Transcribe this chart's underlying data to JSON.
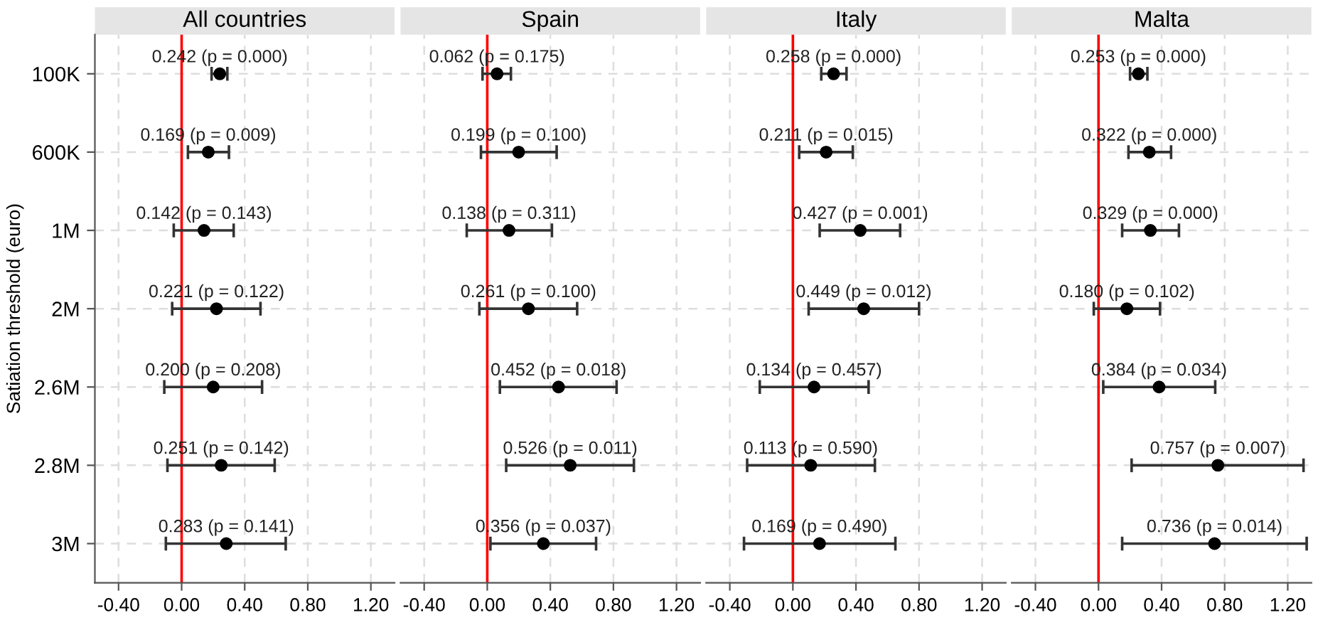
{
  "chart_data": [
    {
      "type": "scatter",
      "orientation": "horizontal",
      "title": "All countries",
      "ylabel": "Satiation threshold (euro)",
      "categories": [
        "100K",
        "600K",
        "1M",
        "2M",
        "2.6M",
        "2.8M",
        "3M"
      ],
      "series": [
        {
          "color": "#000000",
          "values": [
            0.242,
            0.169,
            0.142,
            0.221,
            0.2,
            0.251,
            0.283
          ],
          "errors": [
            [
              0.19,
              0.29
            ],
            [
              0.04,
              0.3
            ],
            [
              -0.05,
              0.33
            ],
            [
              -0.06,
              0.5
            ],
            [
              -0.11,
              0.51
            ],
            [
              -0.09,
              0.59
            ],
            [
              -0.1,
              0.66
            ]
          ],
          "value_labels": [
            "0.242 (p = 0.000)",
            "0.169 (p = 0.009)",
            "0.142 (p = 0.143)",
            "0.221 (p = 0.122)",
            "0.200 (p = 0.208)",
            "0.251 (p = 0.142)",
            "0.283 (p = 0.141)"
          ]
        }
      ],
      "xlim": [
        -0.55,
        1.35
      ],
      "xticks": [
        {
          "value": -0.4,
          "label": "-0.40"
        },
        {
          "value": 0,
          "label": "0.00"
        },
        {
          "value": 0.4,
          "label": "0.40"
        },
        {
          "value": 0.8,
          "label": "0.80"
        },
        {
          "value": 1.2,
          "label": "1.20"
        }
      ],
      "ref_lines": [
        {
          "axis": "x",
          "value": 0,
          "color": "#ff0000"
        }
      ],
      "grid": true,
      "marker": "circle"
    },
    {
      "type": "scatter",
      "orientation": "horizontal",
      "title": "Spain",
      "categories": [
        null,
        null,
        null,
        null,
        null,
        null,
        null
      ],
      "series": [
        {
          "color": "#000000",
          "values": [
            0.062,
            0.199,
            0.138,
            0.261,
            0.452,
            0.526,
            0.356
          ],
          "errors": [
            [
              -0.03,
              0.15
            ],
            [
              -0.04,
              0.44
            ],
            [
              -0.13,
              0.41
            ],
            [
              -0.05,
              0.57
            ],
            [
              0.08,
              0.82
            ],
            [
              0.12,
              0.93
            ],
            [
              0.02,
              0.69
            ]
          ],
          "value_labels": [
            "0.062 (p = 0.175)",
            "0.199 (p = 0.100)",
            "0.138 (p = 0.311)",
            "0.261 (p = 0.100)",
            "0.452 (p = 0.018)",
            "0.526 (p = 0.011)",
            "0.356 (p = 0.037)"
          ]
        }
      ],
      "xlim": [
        -0.55,
        1.35
      ],
      "xticks": [
        {
          "value": -0.4,
          "label": "-0.40"
        },
        {
          "value": 0,
          "label": "0.00"
        },
        {
          "value": 0.4,
          "label": "0.40"
        },
        {
          "value": 0.8,
          "label": "0.80"
        },
        {
          "value": 1.2,
          "label": "1.20"
        }
      ],
      "ref_lines": [
        {
          "axis": "x",
          "value": 0,
          "color": "#ff0000"
        }
      ],
      "grid": true,
      "marker": "circle",
      "tick_labels": "x"
    },
    {
      "type": "scatter",
      "orientation": "horizontal",
      "title": "Italy",
      "categories": [
        null,
        null,
        null,
        null,
        null,
        null,
        null
      ],
      "series": [
        {
          "color": "#000000",
          "values": [
            0.258,
            0.211,
            0.427,
            0.449,
            0.134,
            0.113,
            0.169
          ],
          "errors": [
            [
              0.18,
              0.34
            ],
            [
              0.04,
              0.38
            ],
            [
              0.17,
              0.68
            ],
            [
              0.1,
              0.8
            ],
            [
              -0.21,
              0.48
            ],
            [
              -0.29,
              0.52
            ],
            [
              -0.31,
              0.65
            ]
          ],
          "value_labels": [
            "0.258 (p = 0.000)",
            "0.211 (p = 0.015)",
            "0.427 (p = 0.001)",
            "0.449 (p = 0.012)",
            "0.134 (p = 0.457)",
            "0.113 (p = 0.590)",
            "0.169 (p = 0.490)"
          ]
        }
      ],
      "xlim": [
        -0.55,
        1.35
      ],
      "xticks": [
        {
          "value": -0.4,
          "label": "-0.40"
        },
        {
          "value": 0,
          "label": "0.00"
        },
        {
          "value": 0.4,
          "label": "0.40"
        },
        {
          "value": 0.8,
          "label": "0.80"
        },
        {
          "value": 1.2,
          "label": "1.20"
        }
      ],
      "ref_lines": [
        {
          "axis": "x",
          "value": 0,
          "color": "#ff0000"
        }
      ],
      "grid": true,
      "marker": "circle",
      "tick_labels": "x"
    },
    {
      "type": "scatter",
      "orientation": "horizontal",
      "title": "Malta",
      "categories": [
        null,
        null,
        null,
        null,
        null,
        null,
        null
      ],
      "series": [
        {
          "color": "#000000",
          "values": [
            0.253,
            0.322,
            0.329,
            0.18,
            0.384,
            0.757,
            0.736
          ],
          "errors": [
            [
              0.2,
              0.31
            ],
            [
              0.19,
              0.46
            ],
            [
              0.15,
              0.51
            ],
            [
              -0.03,
              0.39
            ],
            [
              0.03,
              0.74
            ],
            [
              0.21,
              1.3
            ],
            [
              0.15,
              1.32
            ]
          ],
          "value_labels": [
            "0.253 (p = 0.000)",
            "0.322 (p = 0.000)",
            "0.329 (p = 0.000)",
            "0.180 (p = 0.102)",
            "0.384 (p = 0.034)",
            "0.757 (p = 0.007)",
            "0.736 (p = 0.014)"
          ]
        }
      ],
      "xlim": [
        -0.55,
        1.35
      ],
      "xticks": [
        {
          "value": -0.4,
          "label": "-0.40"
        },
        {
          "value": 0,
          "label": "0.00"
        },
        {
          "value": 0.4,
          "label": "0.40"
        },
        {
          "value": 0.8,
          "label": "0.80"
        },
        {
          "value": 1.2,
          "label": "1.20"
        }
      ],
      "ref_lines": [
        {
          "axis": "x",
          "value": 0,
          "color": "#ff0000"
        }
      ],
      "grid": true,
      "marker": "circle",
      "tick_labels": "x"
    }
  ]
}
